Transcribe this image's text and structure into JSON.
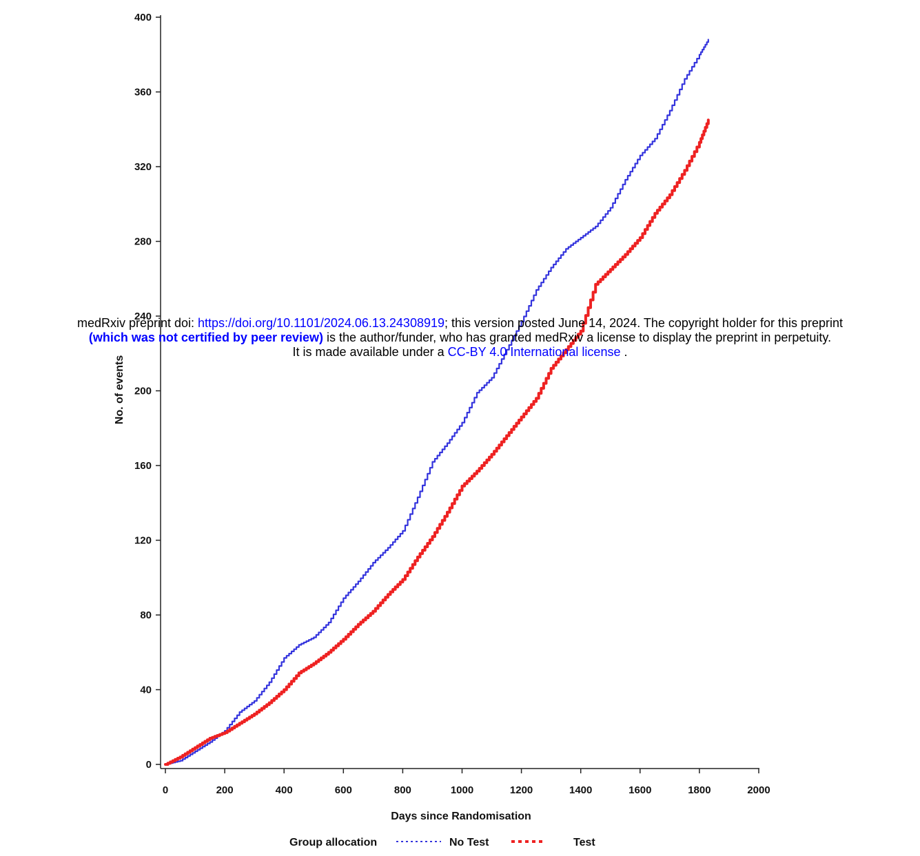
{
  "banner": {
    "line1_prefix": "medRxiv preprint doi: ",
    "doi_link": "https://doi.org/10.1101/2024.06.13.24308919",
    "line1_suffix": "; this version posted June 14, 2024. The copyright holder for this preprint",
    "line2_bold": "(which was not certified by peer review)",
    "line2_rest": " is the author/funder, who has granted medRxiv a license to display the preprint in perpetuity.",
    "line3_prefix": "It is made available under a ",
    "license_link": "CC-BY 4.0 International license",
    "line3_suffix": " ."
  },
  "chart_data": {
    "type": "line",
    "xlabel": "Days since Randomisation",
    "ylabel": "No. of events",
    "xlim": [
      0,
      2000
    ],
    "ylim": [
      0,
      400
    ],
    "xticks": [
      "0",
      "200",
      "400",
      "600",
      "800",
      "1000",
      "1200",
      "1400",
      "1600",
      "1800",
      "2000"
    ],
    "yticks": [
      "0",
      "40",
      "80",
      "120",
      "160",
      "200",
      "240",
      "280",
      "320",
      "360",
      "400"
    ],
    "grid": false,
    "legend": {
      "title": "Group allocation",
      "placement": "bottom-center"
    },
    "series": [
      {
        "name": "No Test",
        "color": "#3333dd",
        "x": [
          0,
          50,
          100,
          150,
          200,
          250,
          300,
          350,
          400,
          450,
          500,
          550,
          600,
          650,
          700,
          750,
          800,
          850,
          900,
          950,
          1000,
          1050,
          1100,
          1150,
          1200,
          1250,
          1300,
          1350,
          1400,
          1450,
          1500,
          1550,
          1600,
          1650,
          1700,
          1750,
          1800,
          1830
        ],
        "y": [
          0,
          2,
          7,
          12,
          18,
          28,
          34,
          44,
          57,
          64,
          68,
          76,
          89,
          98,
          108,
          116,
          125,
          143,
          162,
          172,
          183,
          199,
          207,
          222,
          237,
          254,
          266,
          276,
          282,
          288,
          298,
          313,
          326,
          335,
          350,
          367,
          380,
          388
        ]
      },
      {
        "name": "Test",
        "color": "#ee2222",
        "x": [
          0,
          50,
          100,
          150,
          200,
          250,
          300,
          350,
          400,
          450,
          500,
          550,
          600,
          650,
          700,
          750,
          800,
          850,
          900,
          950,
          1000,
          1050,
          1100,
          1150,
          1200,
          1250,
          1300,
          1350,
          1400,
          1450,
          1500,
          1550,
          1600,
          1650,
          1700,
          1750,
          1800,
          1830
        ],
        "y": [
          0,
          4,
          9,
          14,
          17,
          22,
          27,
          33,
          40,
          49,
          54,
          60,
          67,
          75,
          82,
          91,
          99,
          111,
          122,
          135,
          149,
          157,
          166,
          176,
          186,
          196,
          212,
          222,
          232,
          257,
          265,
          273,
          282,
          295,
          305,
          318,
          333,
          345
        ]
      }
    ]
  }
}
